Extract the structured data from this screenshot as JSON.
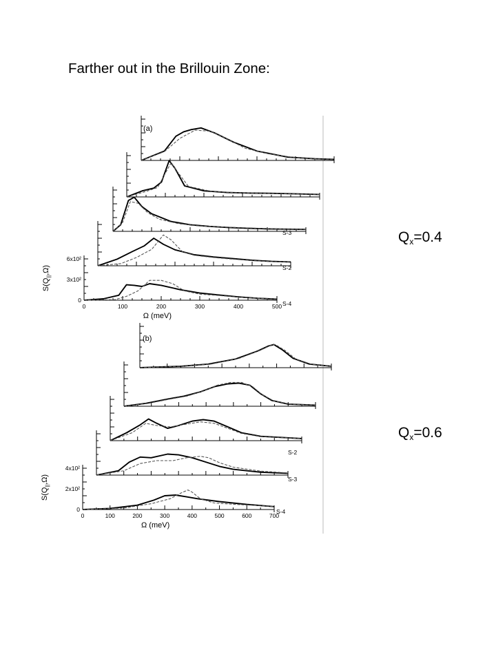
{
  "slide": {
    "title": "Farther out in the Brillouin Zone:",
    "labels": [
      {
        "base": "Q",
        "sub": "x",
        "rest": "=0.4"
      },
      {
        "base": "Q",
        "sub": "x",
        "rest": "=0.6"
      }
    ]
  },
  "chart_data": [
    {
      "type": "line",
      "panel_label": "(a)",
      "xlabel": "Ω (meV)",
      "ylabel": "S(Q",
      "ylabel_sub": "||",
      "ylabel_end": ",Ω)",
      "xlim": [
        0,
        500
      ],
      "x_ticks": [
        "0",
        "100",
        "200",
        "300",
        "400",
        "500"
      ],
      "y_ticks": [
        "0",
        "3x10²",
        "6x10²"
      ],
      "curve_labels": [
        "S-2",
        "S-3",
        "S-4"
      ],
      "series": [
        {
          "label": "S-4",
          "style": "solid",
          "points": [
            [
              0,
              0
            ],
            [
              50,
              25
            ],
            [
              90,
              90
            ],
            [
              110,
              280
            ],
            [
              130,
              270
            ],
            [
              150,
              250
            ],
            [
              170,
              300
            ],
            [
              200,
              270
            ],
            [
              250,
              190
            ],
            [
              300,
              130
            ],
            [
              350,
              95
            ],
            [
              400,
              60
            ],
            [
              450,
              35
            ],
            [
              500,
              20
            ]
          ]
        },
        {
          "label": "S-4",
          "style": "dashed",
          "points": [
            [
              0,
              0
            ],
            [
              80,
              10
            ],
            [
              110,
              70
            ],
            [
              140,
              170
            ],
            [
              170,
              360
            ],
            [
              200,
              360
            ],
            [
              230,
              300
            ],
            [
              260,
              170
            ],
            [
              300,
              110
            ],
            [
              350,
              85
            ],
            [
              400,
              55
            ],
            [
              450,
              35
            ],
            [
              500,
              20
            ]
          ]
        },
        {
          "label": "S-3",
          "style": "solid",
          "points": [
            [
              0,
              0
            ],
            [
              50,
              120
            ],
            [
              90,
              260
            ],
            [
              120,
              360
            ],
            [
              145,
              500
            ],
            [
              170,
              390
            ],
            [
              200,
              290
            ],
            [
              250,
              200
            ],
            [
              300,
              160
            ],
            [
              350,
              130
            ],
            [
              400,
              100
            ],
            [
              450,
              80
            ],
            [
              500,
              70
            ]
          ]
        },
        {
          "label": "S-3",
          "style": "dashed",
          "points": [
            [
              0,
              0
            ],
            [
              60,
              40
            ],
            [
              100,
              150
            ],
            [
              140,
              300
            ],
            [
              170,
              560
            ],
            [
              190,
              470
            ],
            [
              220,
              250
            ],
            [
              250,
              190
            ],
            [
              300,
              150
            ],
            [
              350,
              120
            ],
            [
              400,
              95
            ],
            [
              450,
              75
            ],
            [
              500,
              70
            ]
          ]
        },
        {
          "label": "S-2",
          "style": "solid",
          "points": [
            [
              0,
              0
            ],
            [
              20,
              120
            ],
            [
              40,
              560
            ],
            [
              55,
              620
            ],
            [
              75,
              450
            ],
            [
              100,
              320
            ],
            [
              150,
              180
            ],
            [
              200,
              120
            ],
            [
              250,
              90
            ],
            [
              300,
              70
            ],
            [
              350,
              55
            ],
            [
              400,
              45
            ],
            [
              450,
              40
            ],
            [
              500,
              35
            ]
          ]
        },
        {
          "label": "S-2",
          "style": "dashed",
          "points": [
            [
              0,
              0
            ],
            [
              25,
              160
            ],
            [
              45,
              540
            ],
            [
              65,
              510
            ],
            [
              90,
              340
            ],
            [
              120,
              220
            ],
            [
              170,
              140
            ],
            [
              220,
              100
            ],
            [
              280,
              80
            ],
            [
              340,
              65
            ],
            [
              400,
              50
            ],
            [
              450,
              40
            ],
            [
              500,
              35
            ]
          ]
        },
        {
          "label": "",
          "style": "solid",
          "points": [
            [
              0,
              0
            ],
            [
              40,
              110
            ],
            [
              70,
              160
            ],
            [
              90,
              270
            ],
            [
              110,
              660
            ],
            [
              125,
              520
            ],
            [
              150,
              200
            ],
            [
              200,
              110
            ],
            [
              260,
              80
            ],
            [
              320,
              70
            ],
            [
              380,
              65
            ],
            [
              440,
              55
            ],
            [
              500,
              45
            ]
          ]
        },
        {
          "label": "",
          "style": "dashed",
          "points": [
            [
              0,
              0
            ],
            [
              50,
              100
            ],
            [
              80,
              170
            ],
            [
              100,
              430
            ],
            [
              115,
              620
            ],
            [
              130,
              470
            ],
            [
              160,
              190
            ],
            [
              220,
              100
            ],
            [
              280,
              78
            ],
            [
              340,
              68
            ],
            [
              400,
              60
            ],
            [
              460,
              50
            ],
            [
              500,
              45
            ]
          ]
        },
        {
          "label": "",
          "style": "solid",
          "points": [
            [
              0,
              0
            ],
            [
              60,
              170
            ],
            [
              90,
              440
            ],
            [
              110,
              520
            ],
            [
              130,
              560
            ],
            [
              155,
              590
            ],
            [
              190,
              500
            ],
            [
              240,
              330
            ],
            [
              300,
              170
            ],
            [
              380,
              60
            ],
            [
              450,
              30
            ],
            [
              500,
              20
            ]
          ]
        },
        {
          "label": "",
          "style": "dashed",
          "points": [
            [
              0,
              0
            ],
            [
              60,
              160
            ],
            [
              100,
              400
            ],
            [
              140,
              550
            ],
            [
              180,
              530
            ],
            [
              220,
              400
            ],
            [
              270,
              220
            ],
            [
              330,
              120
            ],
            [
              400,
              50
            ],
            [
              450,
              28
            ],
            [
              500,
              20
            ]
          ]
        }
      ]
    },
    {
      "type": "line",
      "panel_label": "(b)",
      "xlabel": "Ω (meV)",
      "ylabel": "S(Q",
      "ylabel_sub": "||",
      "ylabel_end": ",Ω)",
      "xlim": [
        0,
        700
      ],
      "x_ticks": [
        "0",
        "100",
        "200",
        "300",
        "400",
        "500",
        "600",
        "700"
      ],
      "y_ticks": [
        "0",
        "2x10²",
        "4x10²"
      ],
      "curve_labels": [
        "S-2",
        "S-3",
        "S-4"
      ],
      "series": [
        {
          "label": "S-4",
          "style": "solid",
          "points": [
            [
              0,
              0
            ],
            [
              100,
              15
            ],
            [
              200,
              60
            ],
            [
              260,
              130
            ],
            [
              300,
              190
            ],
            [
              340,
              200
            ],
            [
              380,
              175
            ],
            [
              420,
              150
            ],
            [
              500,
              110
            ],
            [
              600,
              70
            ],
            [
              700,
              40
            ]
          ]
        },
        {
          "label": "S-4",
          "style": "dashed",
          "points": [
            [
              0,
              0
            ],
            [
              150,
              20
            ],
            [
              250,
              80
            ],
            [
              320,
              150
            ],
            [
              360,
              230
            ],
            [
              385,
              270
            ],
            [
              400,
              240
            ],
            [
              430,
              150
            ],
            [
              480,
              90
            ],
            [
              560,
              70
            ],
            [
              640,
              55
            ],
            [
              700,
              40
            ]
          ]
        },
        {
          "label": "S-3",
          "style": "solid",
          "points": [
            [
              0,
              0
            ],
            [
              80,
              60
            ],
            [
              120,
              180
            ],
            [
              160,
              250
            ],
            [
              200,
              240
            ],
            [
              260,
              290
            ],
            [
              300,
              280
            ],
            [
              350,
              240
            ],
            [
              400,
              180
            ],
            [
              450,
              120
            ],
            [
              500,
              80
            ],
            [
              600,
              40
            ],
            [
              700,
              25
            ]
          ]
        },
        {
          "label": "S-3",
          "style": "dashed",
          "points": [
            [
              0,
              0
            ],
            [
              100,
              60
            ],
            [
              160,
              160
            ],
            [
              220,
              200
            ],
            [
              280,
              200
            ],
            [
              330,
              240
            ],
            [
              380,
              260
            ],
            [
              410,
              240
            ],
            [
              450,
              170
            ],
            [
              500,
              110
            ],
            [
              600,
              55
            ],
            [
              700,
              30
            ]
          ]
        },
        {
          "label": "S-2",
          "style": "solid",
          "points": [
            [
              0,
              0
            ],
            [
              60,
              110
            ],
            [
              110,
              220
            ],
            [
              140,
              300
            ],
            [
              170,
              240
            ],
            [
              210,
              170
            ],
            [
              250,
              210
            ],
            [
              300,
              270
            ],
            [
              340,
              290
            ],
            [
              380,
              270
            ],
            [
              430,
              190
            ],
            [
              480,
              110
            ],
            [
              550,
              60
            ],
            [
              700,
              30
            ]
          ]
        },
        {
          "label": "S-2",
          "style": "dashed",
          "points": [
            [
              0,
              0
            ],
            [
              80,
              110
            ],
            [
              130,
              240
            ],
            [
              170,
              210
            ],
            [
              220,
              190
            ],
            [
              280,
              230
            ],
            [
              330,
              260
            ],
            [
              380,
              240
            ],
            [
              430,
              170
            ],
            [
              480,
              100
            ],
            [
              550,
              55
            ],
            [
              700,
              30
            ]
          ]
        },
        {
          "label": "",
          "style": "solid",
          "points": [
            [
              0,
              0
            ],
            [
              80,
              40
            ],
            [
              160,
              100
            ],
            [
              220,
              140
            ],
            [
              280,
              200
            ],
            [
              330,
              270
            ],
            [
              380,
              310
            ],
            [
              420,
              320
            ],
            [
              460,
              290
            ],
            [
              500,
              170
            ],
            [
              540,
              80
            ],
            [
              600,
              30
            ],
            [
              700,
              15
            ]
          ]
        },
        {
          "label": "",
          "style": "dashed",
          "points": [
            [
              0,
              0
            ],
            [
              90,
              40
            ],
            [
              170,
              100
            ],
            [
              230,
              140
            ],
            [
              290,
              210
            ],
            [
              340,
              290
            ],
            [
              390,
              330
            ],
            [
              430,
              330
            ],
            [
              470,
              270
            ],
            [
              505,
              160
            ],
            [
              550,
              70
            ],
            [
              610,
              28
            ],
            [
              700,
              15
            ]
          ]
        },
        {
          "label": "",
          "style": "solid",
          "points": [
            [
              0,
              0
            ],
            [
              150,
              20
            ],
            [
              250,
              50
            ],
            [
              350,
              120
            ],
            [
              430,
              230
            ],
            [
              470,
              300
            ],
            [
              490,
              320
            ],
            [
              520,
              250
            ],
            [
              560,
              130
            ],
            [
              620,
              50
            ],
            [
              700,
              20
            ]
          ]
        },
        {
          "label": "",
          "style": "dashed",
          "points": [
            [
              0,
              0
            ],
            [
              160,
              20
            ],
            [
              260,
              50
            ],
            [
              360,
              125
            ],
            [
              440,
              240
            ],
            [
              480,
              310
            ],
            [
              495,
              320
            ],
            [
              530,
              240
            ],
            [
              570,
              120
            ],
            [
              630,
              45
            ],
            [
              700,
              20
            ]
          ]
        }
      ]
    }
  ]
}
